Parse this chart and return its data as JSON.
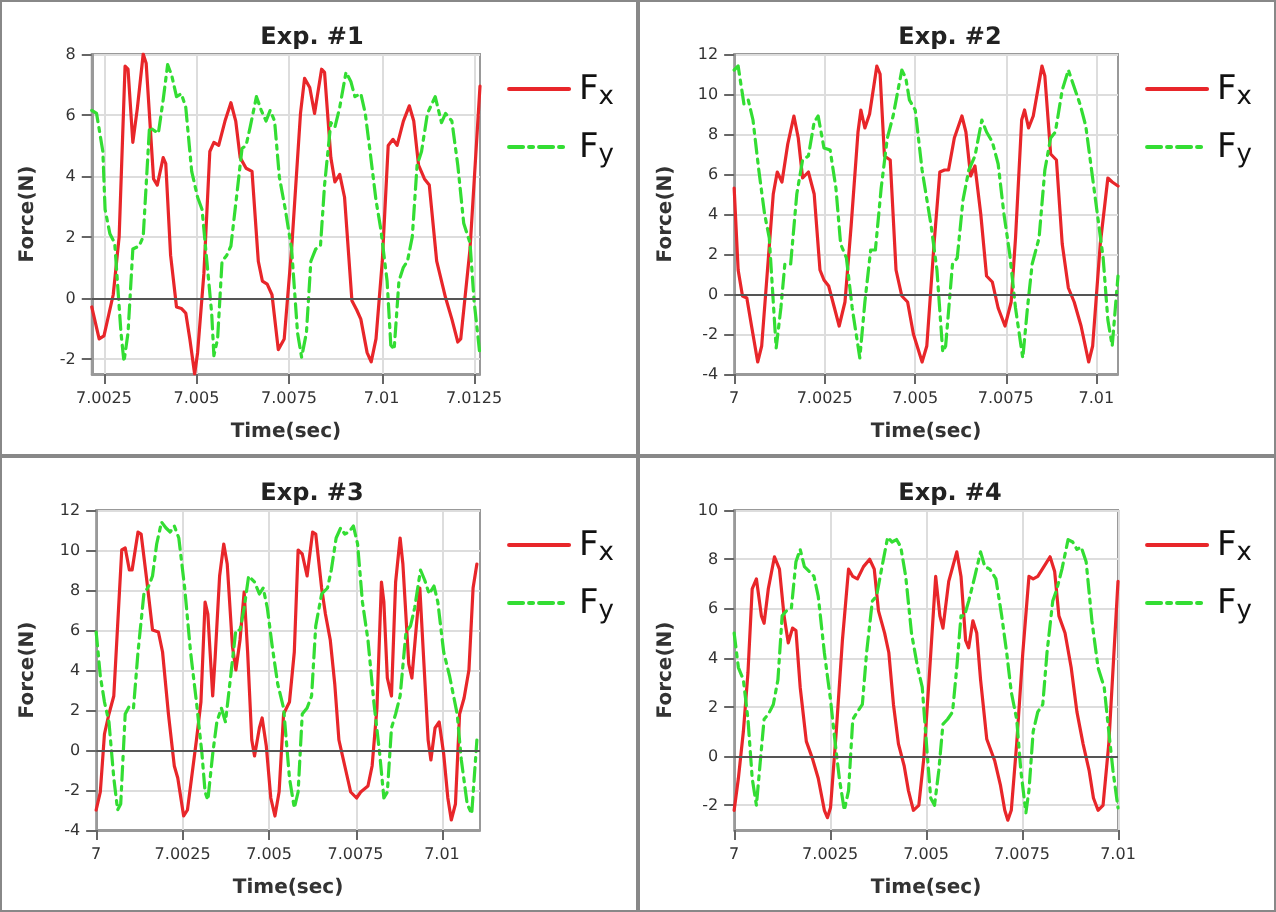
{
  "chart_data": [
    {
      "type": "line",
      "title": "Exp. #1",
      "xlabel": "Time(sec)",
      "ylabel": "Force(N)",
      "xlim": [
        7.00217,
        7.01266
      ],
      "xticks": [
        7.0025,
        7.005,
        7.0075,
        7.01,
        7.0125
      ],
      "ylim": [
        -2.5,
        8
      ],
      "yticks": [
        -2,
        0,
        2,
        4,
        6,
        8
      ],
      "grid": true,
      "legend": "right",
      "marker": "none",
      "ref_lines": [
        {
          "axis": "y",
          "value": 0,
          "color": "#555555"
        }
      ],
      "series": [
        {
          "name": "F$_{x}$",
          "color": "#e8262a",
          "line_style": "solid",
          "x": [
            7.00217,
            7.00237,
            7.0025,
            7.00275,
            7.00291,
            7.00307,
            7.00315,
            7.00328,
            7.0034,
            7.00356,
            7.00364,
            7.00384,
            7.00394,
            7.0041,
            7.00417,
            7.0043,
            7.00446,
            7.00459,
            7.00471,
            7.00482,
            7.00495,
            7.00503,
            7.0052,
            7.00536,
            7.00547,
            7.0056,
            7.00577,
            7.00593,
            7.00606,
            7.00618,
            7.00634,
            7.0065,
            7.00667,
            7.00678,
            7.00691,
            7.00704,
            7.00721,
            7.00737,
            7.00757,
            7.00781,
            7.00792,
            7.00806,
            7.00819,
            7.00838,
            7.00846,
            7.00863,
            7.00874,
            7.00887,
            7.009,
            7.0092,
            7.00933,
            7.00944,
            7.00961,
            7.00972,
            7.00985,
            7.01002,
            7.01018,
            7.01031,
            7.01042,
            7.01059,
            7.01075,
            7.01087,
            7.011,
            7.01116,
            7.01129,
            7.01149,
            7.01173,
            7.0119,
            7.01206,
            7.01214,
            7.01239,
            7.01266
          ],
          "values": [
            -0.3,
            -1.35,
            -1.25,
            0.1,
            2,
            7.6,
            7.5,
            5.1,
            6.2,
            8,
            7.7,
            3.9,
            3.7,
            4.6,
            4.4,
            1.4,
            -0.3,
            -0.35,
            -0.5,
            -1.35,
            -2.5,
            -1.8,
            0.8,
            4.8,
            5.1,
            5,
            5.8,
            6.4,
            5.8,
            4.6,
            4.25,
            4.15,
            1.2,
            0.55,
            0.45,
            0.1,
            -1.7,
            -1.35,
            1.6,
            6.05,
            7.2,
            6.9,
            6.05,
            7.5,
            7.4,
            4.6,
            3.8,
            4.05,
            3.3,
            -0.1,
            -0.4,
            -0.7,
            -1.8,
            -2.1,
            -1.35,
            1.2,
            5,
            5.2,
            5,
            5.8,
            6.3,
            5.8,
            4.35,
            3.9,
            3.7,
            1.2,
            0,
            -0.7,
            -1.45,
            -1.35,
            1.6,
            6.95
          ]
        },
        {
          "name": "F$_{y}$",
          "color": "#33dd33",
          "line_style": "dashed",
          "x": [
            7.00217,
            7.0023,
            7.00247,
            7.00253,
            7.00266,
            7.00279,
            7.00296,
            7.00304,
            7.00315,
            7.00328,
            7.00345,
            7.00356,
            7.00373,
            7.00384,
            7.00397,
            7.0041,
            7.00422,
            7.00433,
            7.00446,
            7.00459,
            7.00471,
            7.00487,
            7.00503,
            7.00515,
            7.00528,
            7.00541,
            7.00547,
            7.00557,
            7.00569,
            7.00582,
            7.00593,
            7.0061,
            7.00623,
            7.00634,
            7.00645,
            7.00662,
            7.00675,
            7.00688,
            7.00699,
            7.00711,
            7.00724,
            7.0074,
            7.00757,
            7.00773,
            7.00784,
            7.00797,
            7.00809,
            7.00822,
            7.00835,
            7.00846,
            7.00863,
            7.00874,
            7.00887,
            7.00904,
            7.00917,
            7.00928,
            7.00944,
            7.00956,
            7.00969,
            7.00985,
            7.00998,
            7.01015,
            7.01025,
            7.01034,
            7.01047,
            7.01059,
            7.0107,
            7.01083,
            7.01096,
            7.01108,
            7.01124,
            7.01145,
            7.01162,
            7.01173,
            7.0119,
            7.01206,
            7.01222,
            7.01239,
            7.0125,
            7.01266
          ],
          "values": [
            6.15,
            6.05,
            4.8,
            2.9,
            2.1,
            1.8,
            -1.15,
            -2.1,
            -1.15,
            1.6,
            1.7,
            2,
            5.6,
            5.5,
            5.4,
            6.5,
            7.65,
            7.3,
            6.6,
            6.7,
            6.25,
            4.15,
            3.3,
            2.9,
            1.2,
            -0.5,
            -1.9,
            -1.35,
            1.2,
            1.4,
            1.7,
            3.5,
            4.9,
            5,
            5.6,
            6.6,
            6.15,
            5.8,
            6.15,
            5.8,
            3.95,
            2.9,
            1.6,
            -1.15,
            -1.95,
            -1.15,
            1.2,
            1.6,
            1.7,
            3.7,
            5.75,
            5.6,
            6.25,
            7.4,
            7.1,
            6.6,
            6.7,
            6.05,
            4.8,
            3.2,
            2.25,
            0.55,
            -1.55,
            -1.7,
            0.55,
            1,
            1.2,
            2,
            4.35,
            4.8,
            6.05,
            6.6,
            5.75,
            6.05,
            5.8,
            4.35,
            2.45,
            1.8,
            -0.1,
            -1.9
          ]
        }
      ]
    },
    {
      "type": "line",
      "title": "Exp. #2",
      "xlabel": "Time(sec)",
      "ylabel": "Force(N)",
      "xlim": [
        7,
        7.0106
      ],
      "xticks": [
        7,
        7.0025,
        7.005,
        7.0075,
        7.01
      ],
      "ylim": [
        -4,
        12
      ],
      "yticks": [
        -4,
        -2,
        0,
        2,
        4,
        6,
        8,
        10,
        12
      ],
      "grid": true,
      "legend": "right",
      "marker": "none",
      "ref_lines": [
        {
          "axis": "y",
          "value": 0,
          "color": "#555555"
        }
      ],
      "series": [
        {
          "name": "F$_{x}$",
          "color": "#e8262a",
          "line_style": "solid",
          "x": [
            7,
            7.00011,
            7.00023,
            7.00035,
            7.00048,
            7.00065,
            7.00076,
            7.00092,
            7.00108,
            7.00119,
            7.00132,
            7.00148,
            7.00165,
            7.00177,
            7.00189,
            7.00205,
            7.00221,
            7.00237,
            7.00248,
            7.00261,
            7.00277,
            7.0029,
            7.00306,
            7.00323,
            7.00342,
            7.0035,
            7.00361,
            7.00374,
            7.00394,
            7.00403,
            7.00415,
            7.00431,
            7.00447,
            7.00463,
            7.00479,
            7.00495,
            7.00519,
            7.00532,
            7.00552,
            7.00568,
            7.00581,
            7.00592,
            7.00608,
            7.00629,
            7.0064,
            7.00653,
            7.00665,
            7.00681,
            7.00697,
            7.00713,
            7.00729,
            7.00748,
            7.00765,
            7.00777,
            7.00794,
            7.00802,
            7.00813,
            7.00826,
            7.0085,
            7.00858,
            7.00874,
            7.0089,
            7.00906,
            7.00923,
            7.00939,
            7.00958,
            7.00979,
            7.0099,
            7.01011,
            7.01032,
            7.01044,
            7.0106
          ],
          "values": [
            5.3,
            1.2,
            -0.1,
            -0.2,
            -1.6,
            -3.4,
            -2.6,
            1.2,
            5,
            6.1,
            5.6,
            7.5,
            8.9,
            7.8,
            5.8,
            6.1,
            5,
            1.2,
            0.7,
            0.4,
            -0.7,
            -1.6,
            -0.4,
            3.4,
            8.1,
            9.2,
            8.3,
            9,
            11.4,
            11,
            6.9,
            6.7,
            1.2,
            -0.1,
            -0.4,
            -2,
            -3.4,
            -2.6,
            2.5,
            6.1,
            6.2,
            6.2,
            7.8,
            8.9,
            8.1,
            5.9,
            6.4,
            4,
            0.9,
            0.6,
            -0.7,
            -1.6,
            -0.4,
            2.8,
            8.7,
            9.2,
            8.3,
            8.9,
            11.4,
            10.9,
            7,
            6.7,
            2.5,
            0.3,
            -0.4,
            -1.6,
            -3.4,
            -2.6,
            2.5,
            5.8,
            5.6,
            5.4
          ]
        },
        {
          "name": "F$_{y}$",
          "color": "#33dd33",
          "line_style": "dashed",
          "x": [
            7,
            7.00011,
            7.00027,
            7.00039,
            7.00052,
            7.00068,
            7.00084,
            7.00097,
            7.00108,
            7.00116,
            7.00129,
            7.0014,
            7.00156,
            7.00173,
            7.00189,
            7.00205,
            7.00221,
            7.00232,
            7.00248,
            7.00265,
            7.00281,
            7.00294,
            7.0031,
            7.00326,
            7.00347,
            7.00361,
            7.00377,
            7.0039,
            7.00406,
            7.00423,
            7.00439,
            7.00463,
            7.00474,
            7.00484,
            7.005,
            7.00519,
            7.00544,
            7.0056,
            7.00576,
            7.00584,
            7.00603,
            7.00616,
            7.00632,
            7.00648,
            7.00665,
            7.00684,
            7.00697,
            7.00713,
            7.00729,
            7.00745,
            7.00761,
            7.00777,
            7.00797,
            7.0081,
            7.00823,
            7.00842,
            7.00858,
            7.00874,
            7.00887,
            7.00906,
            7.00923,
            7.00936,
            7.00955,
            7.00971,
            7.00987,
            7.01003,
            7.01019,
            7.01032,
            7.01044,
            7.0106
          ],
          "values": [
            11.2,
            11.4,
            9.5,
            9.7,
            8.7,
            6.2,
            4,
            2.8,
            -0.4,
            -2.7,
            -0.7,
            1.5,
            1.5,
            5,
            6.7,
            6.9,
            8.6,
            8.9,
            7.3,
            7.2,
            5.3,
            2.5,
            1.8,
            -0.7,
            -3.2,
            -0.4,
            2.2,
            2.2,
            5.3,
            7.8,
            8.9,
            11.2,
            10.8,
            9.7,
            9.2,
            6.2,
            3.4,
            1.2,
            -2.9,
            -2.6,
            1.5,
            1.8,
            4.7,
            6.2,
            6.9,
            8.7,
            8.1,
            7.6,
            6.5,
            4,
            2,
            -0.7,
            -3.2,
            -0.7,
            1.5,
            2.8,
            6.2,
            7.8,
            8.1,
            10.2,
            11.2,
            10.5,
            9.5,
            8.4,
            6.2,
            4,
            1.8,
            -1.3,
            -2.6,
            0.9
          ]
        }
      ]
    },
    {
      "type": "line",
      "title": "Exp. #3",
      "xlabel": "Time(sec)",
      "ylabel": "Force(N)",
      "xlim": [
        7,
        7.0111
      ],
      "xticks": [
        7,
        7.0025,
        7.005,
        7.0075,
        7.01
      ],
      "ylim": [
        -4,
        12
      ],
      "yticks": [
        -4,
        -2,
        0,
        2,
        4,
        6,
        8,
        10,
        12
      ],
      "grid": true,
      "legend": "right",
      "marker": "none",
      "ref_lines": [
        {
          "axis": "y",
          "value": 0,
          "color": "#555555"
        }
      ],
      "series": [
        {
          "name": "F$_{x}$",
          "color": "#e8262a",
          "line_style": "solid",
          "x": [
            7,
            7.00012,
            7.00024,
            7.00037,
            7.00051,
            7.00062,
            7.00074,
            7.00084,
            7.00096,
            7.00104,
            7.00121,
            7.0013,
            7.00147,
            7.00163,
            7.0018,
            7.00192,
            7.00209,
            7.00226,
            7.00236,
            7.00253,
            7.00264,
            7.0029,
            7.00303,
            7.00315,
            7.00323,
            7.00337,
            7.00344,
            7.00357,
            7.00369,
            7.00379,
            7.00394,
            7.00404,
            7.00416,
            7.00428,
            7.00438,
            7.0045,
            7.00458,
            7.00472,
            7.0048,
            7.00492,
            7.00505,
            7.00517,
            7.00529,
            7.00542,
            7.00559,
            7.00573,
            7.00584,
            7.00596,
            7.0061,
            7.00626,
            7.00635,
            7.00652,
            7.00663,
            7.00677,
            7.0069,
            7.00702,
            7.00719,
            7.00736,
            7.00753,
            7.00765,
            7.00786,
            7.00798,
            7.00812,
            7.00825,
            7.00832,
            7.00842,
            7.00854,
            7.00866,
            7.00879,
            7.00887,
            7.00904,
            7.00913,
            7.00926,
            7.00936,
            7.00946,
            7.0096,
            7.00968,
            7.0098,
            7.00992,
            7.01005,
            7.01017,
            7.01027,
            7.01039,
            7.01051,
            7.01064,
            7.01078,
            7.0109,
            7.01101
          ],
          "values": [
            -3,
            -2.1,
            0.8,
            1.8,
            2.7,
            6.2,
            10,
            10.1,
            9,
            9,
            10.9,
            10.8,
            8.4,
            6,
            5.9,
            4.9,
            1.8,
            -0.8,
            -1.4,
            -3.3,
            -3,
            0.5,
            2.4,
            7.4,
            6.8,
            2.7,
            4.6,
            8.7,
            10.3,
            9.3,
            5.2,
            4,
            5.5,
            7.9,
            4.9,
            0.5,
            -0.3,
            1.1,
            1.6,
            0.2,
            -2.4,
            -3.3,
            -2.1,
            1.8,
            2.4,
            4.9,
            10,
            9.8,
            8.7,
            10.9,
            10.8,
            8.1,
            6.8,
            5.5,
            3.3,
            0.5,
            -0.8,
            -2.1,
            -2.4,
            -2.1,
            -1.8,
            -0.8,
            2.1,
            8.4,
            7.4,
            3.6,
            2.7,
            8.4,
            10.6,
            9.3,
            4.3,
            3.6,
            6.2,
            8.1,
            4.9,
            0.5,
            -0.5,
            1.1,
            1.4,
            -0.2,
            -2.4,
            -3.5,
            -2.7,
            1.8,
            2.6,
            4,
            8.1,
            9.3
          ]
        },
        {
          "name": "F$_{y}$",
          "color": "#33dd33",
          "line_style": "dashed",
          "x": [
            7,
            7.00012,
            7.00024,
            7.00037,
            7.00051,
            7.00062,
            7.00071,
            7.00084,
            7.00096,
            7.00108,
            7.00121,
            7.00138,
            7.00152,
            7.00163,
            7.00175,
            7.00189,
            7.00202,
            7.00214,
            7.00226,
            7.00239,
            7.00256,
            7.00273,
            7.0029,
            7.00306,
            7.00315,
            7.00323,
            7.00337,
            7.00349,
            7.00362,
            7.00374,
            7.00391,
            7.00404,
            7.00416,
            7.00428,
            7.00441,
            7.00458,
            7.00472,
            7.00483,
            7.00495,
            7.00509,
            7.00525,
            7.00542,
            7.00559,
            7.00573,
            7.00584,
            7.00596,
            7.0061,
            7.00623,
            7.00635,
            7.00652,
            7.00669,
            7.0068,
            7.00694,
            7.00707,
            7.00719,
            7.00731,
            7.00744,
            7.00756,
            7.0077,
            7.00786,
            7.00803,
            7.0082,
            7.00832,
            7.00842,
            7.00854,
            7.00866,
            7.00879,
            7.00896,
            7.00909,
            7.00921,
            7.00938,
            7.0095,
            7.00963,
            7.00977,
            7.00988,
            7.01005,
            7.01022,
            7.01044,
            7.01056,
            7.01073,
            7.01086,
            7.01101
          ],
          "values": [
            5.9,
            3.7,
            2.4,
            1.4,
            -1.4,
            -3,
            -2.7,
            1.8,
            2.2,
            2.1,
            4.9,
            7.8,
            8.2,
            8.7,
            10.3,
            11.4,
            11.1,
            10.9,
            11.2,
            10.6,
            8.1,
            4.9,
            2.4,
            -0.2,
            -2.1,
            -2.5,
            -0.2,
            1.4,
            2.1,
            1.4,
            4,
            6,
            6,
            7.1,
            8.7,
            8.4,
            7.8,
            8.1,
            7.1,
            5.2,
            3.3,
            2.1,
            -1.4,
            -2.9,
            -2.1,
            1.8,
            2.1,
            2.7,
            6.2,
            7.8,
            8.1,
            9,
            10.6,
            11.1,
            10.8,
            10.9,
            11.2,
            10.3,
            7.4,
            5.5,
            2.4,
            -0.2,
            -2.4,
            -2.1,
            1.1,
            1.8,
            2.7,
            5.9,
            6.2,
            7.1,
            9,
            8.5,
            7.8,
            8.2,
            7.4,
            4.9,
            3.7,
            1.8,
            -0.5,
            -2.7,
            -3.2,
            0.5
          ]
        }
      ]
    },
    {
      "type": "line",
      "title": "Exp. #4",
      "xlabel": "Time(sec)",
      "ylabel": "Force(N)",
      "xlim": [
        7,
        7.01
      ],
      "xticks": [
        7,
        7.0025,
        7.005,
        7.0075,
        7.01
      ],
      "ylim": [
        -3,
        10
      ],
      "yticks": [
        -2,
        0,
        2,
        4,
        6,
        8,
        10
      ],
      "grid": true,
      "legend": "right",
      "marker": "none",
      "ref_lines": [
        {
          "axis": "y",
          "value": 0,
          "color": "#555555"
        }
      ],
      "series": [
        {
          "name": "F$_{x}$",
          "color": "#e8262a",
          "line_style": "solid",
          "x": [
            7,
            7.00011,
            7.00024,
            7.00036,
            7.00047,
            7.00058,
            7.00071,
            7.00078,
            7.00089,
            7.00105,
            7.00118,
            7.0013,
            7.00141,
            7.00152,
            7.00161,
            7.00172,
            7.00188,
            7.00204,
            7.00219,
            7.00235,
            7.00243,
            7.00251,
            7.00266,
            7.00282,
            7.00298,
            7.00309,
            7.00321,
            7.00337,
            7.00353,
            7.00365,
            7.00376,
            7.00392,
            7.00403,
            7.00415,
            7.00428,
            7.00443,
            7.00454,
            7.00467,
            7.00481,
            7.00494,
            7.00509,
            7.00525,
            7.00536,
            7.00544,
            7.00559,
            7.0058,
            7.00591,
            7.00603,
            7.00611,
            7.00622,
            7.00632,
            7.00642,
            7.00658,
            7.00679,
            7.00694,
            7.00705,
            7.00713,
            7.00722,
            7.00736,
            7.00752,
            7.00768,
            7.00779,
            7.00791,
            7.00807,
            7.00823,
            7.00835,
            7.00846,
            7.00862,
            7.00878,
            7.00893,
            7.00909,
            7.00925,
            7.00936,
            7.00948,
            7.00961,
            7.00976,
            7.01
          ],
          "values": [
            -2.2,
            -0.9,
            1,
            3.4,
            6.8,
            7.2,
            5.7,
            5.4,
            6.8,
            8.1,
            7.6,
            5.7,
            4.6,
            5.2,
            5.1,
            2.8,
            0.6,
            -0.1,
            -0.9,
            -2.2,
            -2.5,
            -2.1,
            1,
            4.7,
            7.6,
            7.3,
            7.2,
            7.7,
            8,
            7.6,
            5.9,
            5,
            4.2,
            2.1,
            0.5,
            -0.4,
            -1.4,
            -2.2,
            -2,
            -0.1,
            3.4,
            7.3,
            5.7,
            5.2,
            7.1,
            8.3,
            7.3,
            4.7,
            4.4,
            5.5,
            5,
            3.1,
            0.7,
            -0.2,
            -1.2,
            -2.2,
            -2.6,
            -2.2,
            0.5,
            4.2,
            7.3,
            7.2,
            7.3,
            7.7,
            8.1,
            7.5,
            5.7,
            5,
            3.6,
            1.8,
            0.5,
            -0.6,
            -1.7,
            -2.2,
            -2,
            0.5,
            7.1
          ]
        },
        {
          "name": "F$_{y}$",
          "color": "#33dd33",
          "line_style": "dashed",
          "x": [
            7,
            7.00011,
            7.00024,
            7.00036,
            7.00047,
            7.00058,
            7.00067,
            7.00078,
            7.00089,
            7.00102,
            7.00114,
            7.00125,
            7.00136,
            7.00149,
            7.00161,
            7.00172,
            7.00183,
            7.00196,
            7.00208,
            7.00219,
            7.00235,
            7.00251,
            7.00262,
            7.00274,
            7.00287,
            7.00298,
            7.00309,
            7.00321,
            7.00334,
            7.00345,
            7.0036,
            7.00371,
            7.00384,
            7.004,
            7.00411,
            7.00423,
            7.00434,
            7.00447,
            7.00462,
            7.00478,
            7.0049,
            7.00501,
            7.00512,
            7.00522,
            7.00533,
            7.00544,
            7.00556,
            7.00569,
            7.0058,
            7.00591,
            7.006,
            7.00611,
            7.00627,
            7.00642,
            7.00653,
            7.00666,
            7.00682,
            7.00697,
            7.0071,
            7.00722,
            7.00736,
            7.00747,
            7.0076,
            7.00768,
            7.00779,
            7.00791,
            7.00804,
            7.00815,
            7.0083,
            7.00841,
            7.00854,
            7.0087,
            7.00882,
            7.00893,
            7.00904,
            7.00917,
            7.00932,
            7.00948,
            7.00964,
            7.00976,
            7.00987,
            7.01
          ],
          "values": [
            5,
            3.6,
            3.1,
            1.5,
            -0.9,
            -2,
            -0.4,
            1.5,
            1.7,
            2.1,
            3.1,
            5.7,
            5.9,
            6,
            7.9,
            8.4,
            7.7,
            7.5,
            7.3,
            6.5,
            4.2,
            2.3,
            0.7,
            -0.9,
            -2.2,
            -1.4,
            1.5,
            1.8,
            2.1,
            4.2,
            6.3,
            6.5,
            7.6,
            8.9,
            8.7,
            8.8,
            8.5,
            7.3,
            5,
            3.6,
            2.8,
            0.5,
            -1.7,
            -2,
            -0.6,
            1.3,
            1.5,
            1.8,
            3.6,
            5.7,
            5.7,
            6.3,
            7.3,
            8.3,
            7.7,
            7.6,
            7.2,
            5.7,
            4.2,
            2.6,
            1.5,
            -0.6,
            -2.3,
            -1.4,
            1,
            1.8,
            2.1,
            4.2,
            6.3,
            6.8,
            7.6,
            8.8,
            8.7,
            8.4,
            8.5,
            7.9,
            5.5,
            3.6,
            2.8,
            1,
            -0.6,
            -2.1
          ]
        }
      ]
    }
  ]
}
